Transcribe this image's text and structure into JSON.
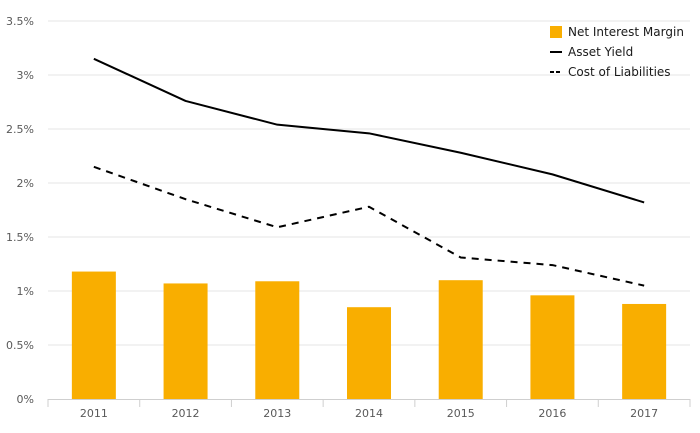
{
  "chart_data": {
    "type": "bar",
    "title": "",
    "xlabel": "",
    "ylabel": "",
    "categories": [
      "2011",
      "2012",
      "2013",
      "2014",
      "2015",
      "2016",
      "2017"
    ],
    "y_ticks": [
      "0%",
      "0.5%",
      "1%",
      "1.5%",
      "2%",
      "2.5%",
      "3%",
      "3.5%"
    ],
    "ylim": [
      0,
      3.5
    ],
    "grid": true,
    "legend_position": "top-right",
    "series": [
      {
        "name": "Net Interest Margin",
        "kind": "bar",
        "color": "#F9AE00",
        "values": [
          1.18,
          1.07,
          1.09,
          0.85,
          1.1,
          0.96,
          0.88
        ]
      },
      {
        "name": "Asset Yield",
        "kind": "line",
        "style": "solid",
        "color": "#000000",
        "values": [
          3.15,
          2.76,
          2.54,
          2.46,
          2.28,
          2.08,
          1.82
        ]
      },
      {
        "name": "Cost of Liabilities",
        "kind": "line",
        "style": "dashed",
        "color": "#000000",
        "values": [
          2.15,
          1.85,
          1.59,
          1.78,
          1.31,
          1.24,
          1.05
        ]
      }
    ]
  }
}
